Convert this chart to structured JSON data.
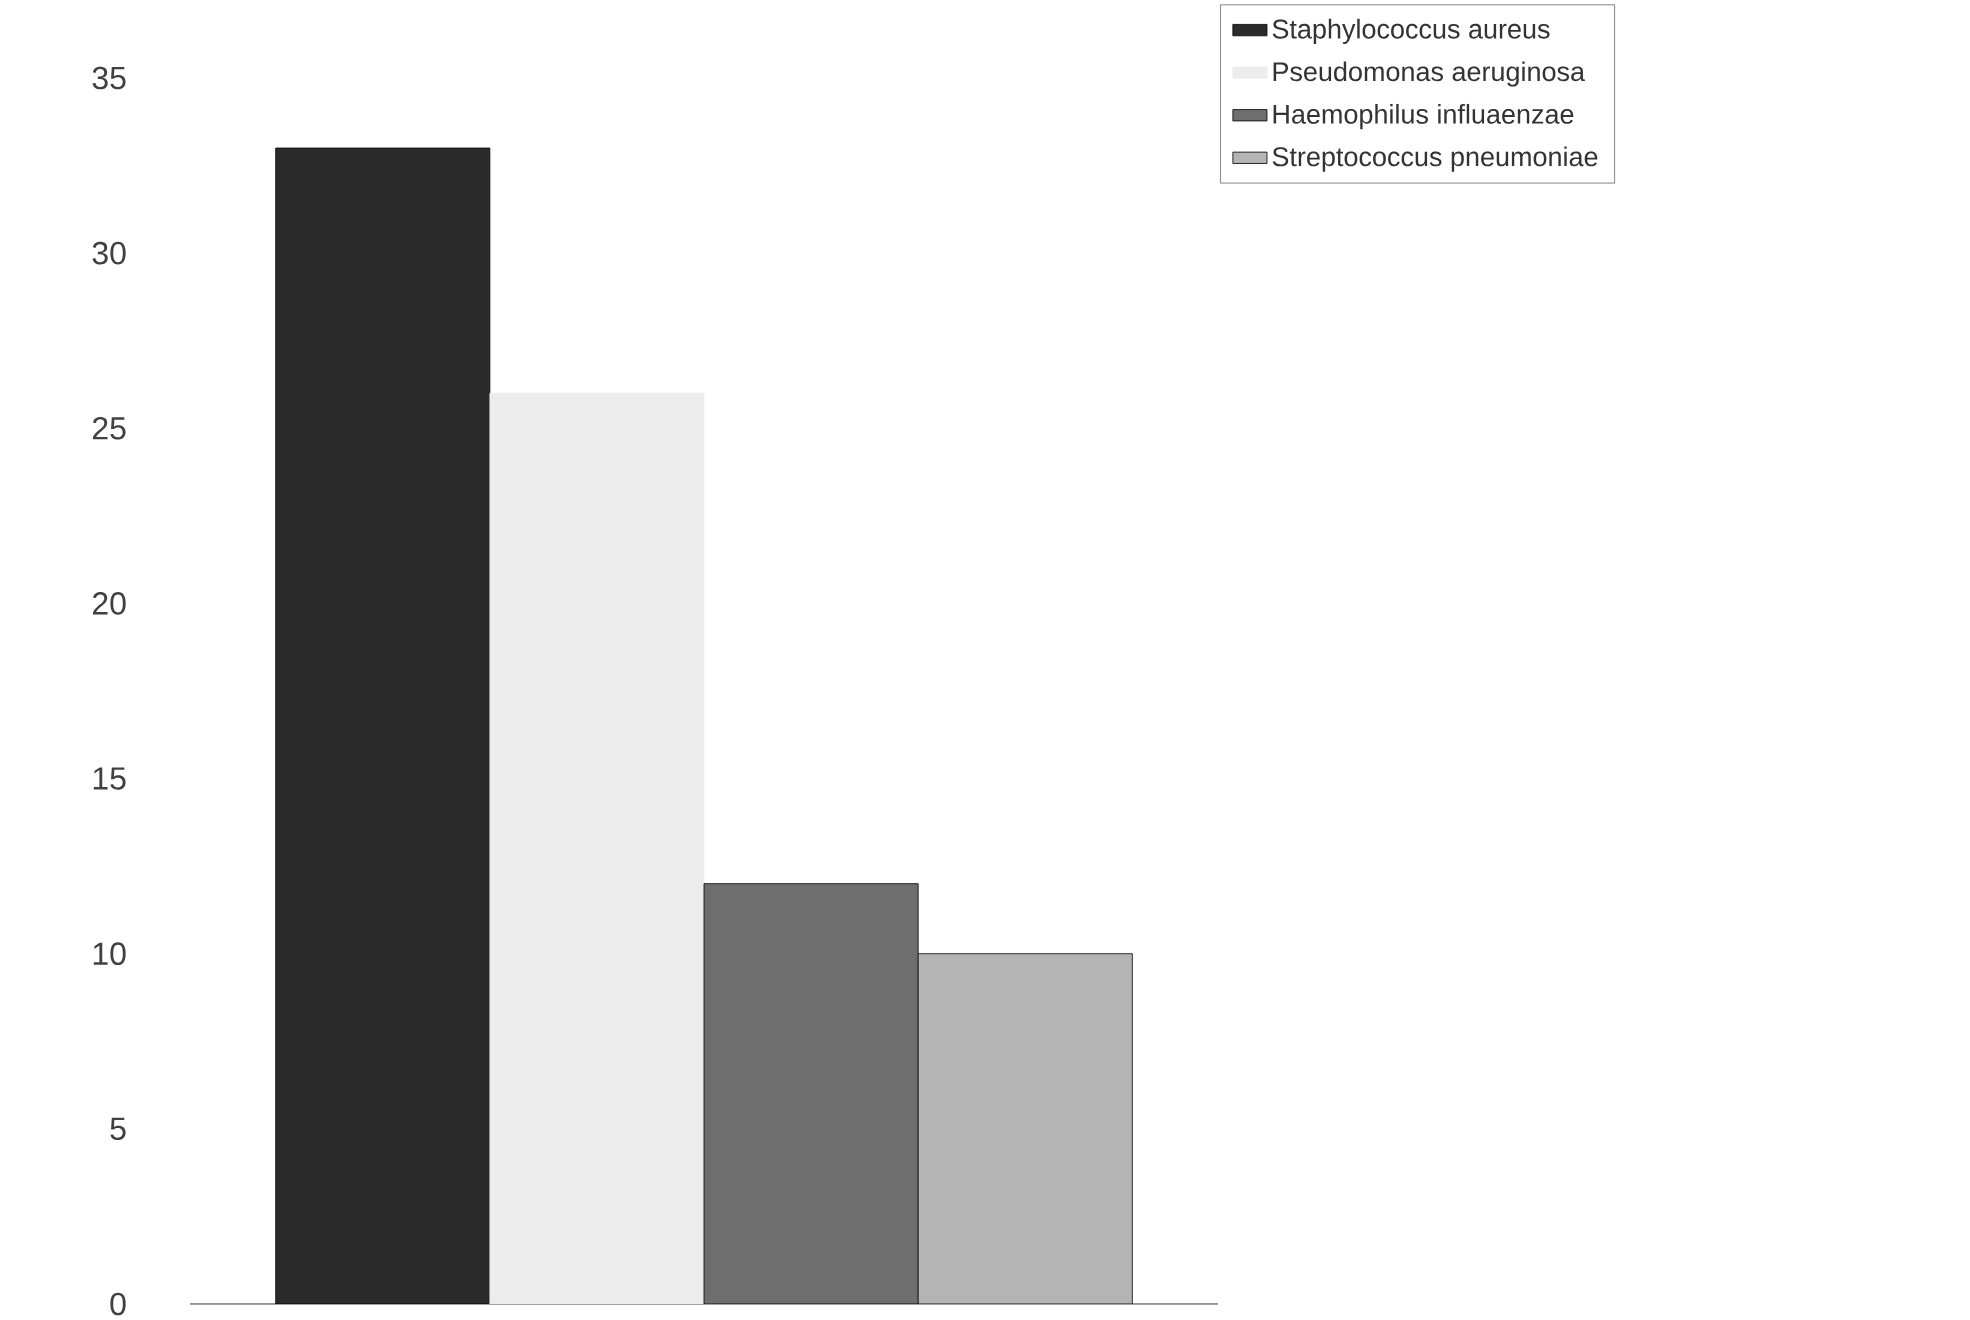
{
  "chart_data": {
    "type": "bar",
    "categories": [
      null
    ],
    "series": [
      {
        "name": "Staphylococcus aureus",
        "color": "#2b2b2b",
        "values": [
          33
        ]
      },
      {
        "name": "Pseudomonas aeruginosa",
        "color": "#ececec",
        "values": [
          26
        ]
      },
      {
        "name": "Haemophilus influaenzae",
        "color": "#6e6e6e",
        "values": [
          12
        ]
      },
      {
        "name": "Streptococcus pneumoniae",
        "color": "#b4b4b4",
        "values": [
          10
        ]
      }
    ],
    "ylim": [
      0,
      35
    ],
    "yticks": [
      0,
      5,
      10,
      15,
      20,
      25,
      30,
      35
    ],
    "legend": "top right",
    "grid": false
  }
}
